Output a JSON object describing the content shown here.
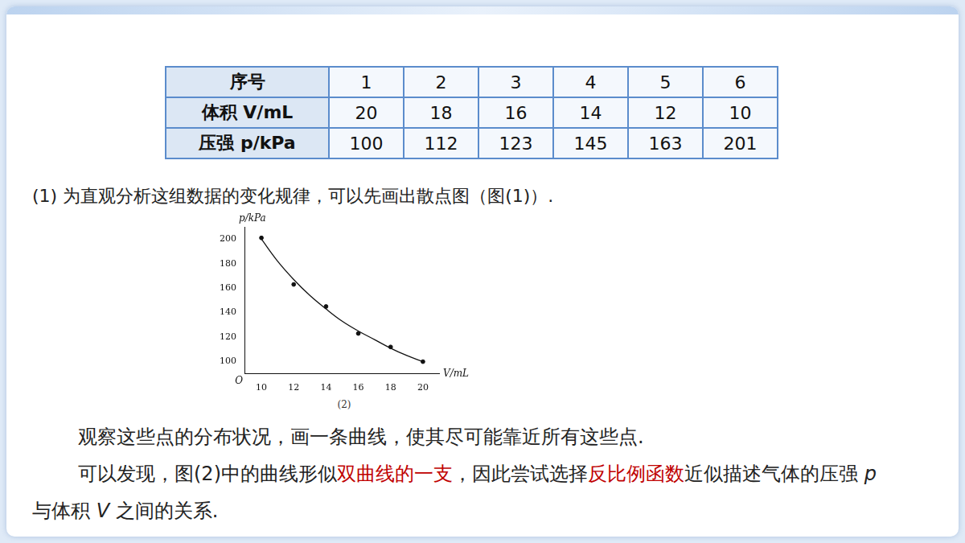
{
  "table": {
    "rows": [
      [
        "序号",
        "1",
        "2",
        "3",
        "4",
        "5",
        "6"
      ],
      [
        "体积 V/mL",
        "20",
        "18",
        "16",
        "14",
        "12",
        "10"
      ],
      [
        "压强 p/kPa",
        "100",
        "112",
        "123",
        "145",
        "163",
        "201"
      ]
    ]
  },
  "intro": "(1) 为直观分析这组数据的变化规律，可以先画出散点图（图(1)）.",
  "chart_data": {
    "type": "scatter",
    "x_label": "V/mL",
    "y_label": "p/kPa",
    "origin_label": "O",
    "caption": "(2)",
    "xlim": [
      9,
      21
    ],
    "xticks": [
      10,
      12,
      14,
      16,
      18,
      20
    ],
    "ylim": [
      90,
      210
    ],
    "yticks": [
      100,
      120,
      140,
      160,
      180,
      200
    ],
    "grid": false,
    "tick_labels": true,
    "series": [
      {
        "type": "scatter",
        "color": "#111111",
        "marker": "circle",
        "x": [
          20,
          18,
          16,
          14,
          12,
          10
        ],
        "values": [
          100,
          112,
          123,
          145,
          163,
          201
        ]
      },
      {
        "type": "line",
        "color": "#111111",
        "line_style": "solid",
        "x": [
          10,
          11,
          12,
          13,
          14,
          15,
          16,
          17,
          18,
          19,
          20
        ],
        "values": [
          200,
          182,
          167,
          154,
          143,
          133,
          125,
          118,
          111,
          105,
          100
        ]
      }
    ]
  },
  "paragraphs": [
    [
      {
        "text": "观察这些点的分布状况，画一条曲线，使其尽可能靠近所有这些点."
      }
    ],
    [
      {
        "text": "可以发现，图(2)中的曲线形似"
      },
      {
        "text": "双曲线的一支",
        "color": "#c00000"
      },
      {
        "text": "，因此尝试选择"
      },
      {
        "text": "反比例函数",
        "color": "#c00000"
      },
      {
        "text": "近似描述气体的压强 "
      },
      {
        "text": "p",
        "italic": true
      },
      {
        "text": " 与体积 "
      },
      {
        "text": "V",
        "italic": true
      },
      {
        "text": " 之间的关系."
      }
    ]
  ]
}
